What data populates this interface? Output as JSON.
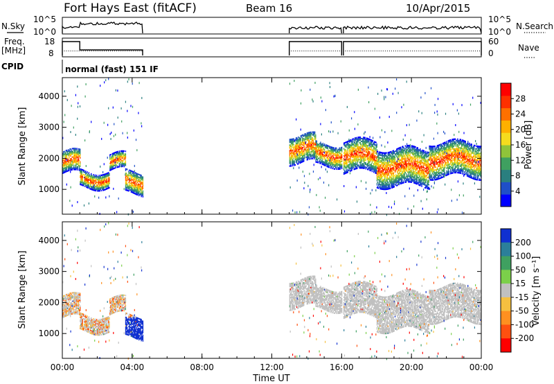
{
  "header": {
    "station": "Fort Hays East (fitACF)",
    "beam": "Beam 16",
    "date": "10/Apr/2015"
  },
  "strips": {
    "nsky_label": "N.Sky",
    "nsearch_label": "N.Search",
    "nsky_ticks": [
      "10^5",
      "10^0"
    ],
    "nsearch_ticks": [
      "10^5",
      "10^0"
    ],
    "freq_label_line1": "Freq.",
    "freq_label_line2": "[MHz]",
    "freq_ticks": [
      "18",
      "8"
    ],
    "nave_label": "Nave",
    "nave_ticks": [
      "60",
      "0"
    ],
    "cpid_label": "CPID",
    "cpid_text": "normal (fast) 151 IF"
  },
  "chart_data": [
    {
      "type": "heatmap",
      "name": "power-panel",
      "ylabel": "Slant Range [km]",
      "xlabel": "",
      "y_ticks": [
        "1000",
        "2000",
        "3000",
        "4000"
      ],
      "y_tick_values": [
        1000,
        2000,
        3000,
        4000
      ],
      "ylim": [
        200,
        4600
      ],
      "colorbar_label": "Power [dB]",
      "colorbar_ticks": [
        "4",
        "8",
        "12",
        "16",
        "20",
        "24",
        "28"
      ],
      "colorbar_values": [
        4,
        8,
        12,
        16,
        20,
        24,
        28
      ],
      "colorbar_range": [
        0,
        32
      ],
      "colors": [
        "#0000ff",
        "#1f4fc8",
        "#2a7f7f",
        "#3fa060",
        "#8fc43a",
        "#f5dc1e",
        "#ffb000",
        "#ff7000",
        "#ff3000",
        "#ff0000"
      ]
    },
    {
      "type": "heatmap",
      "name": "velocity-panel",
      "ylabel": "Slant Range [km]",
      "xlabel": "Time UT",
      "x_ticks": [
        "00:00",
        "04:00",
        "08:00",
        "12:00",
        "16:00",
        "20:00",
        "00:00"
      ],
      "x_tick_hours": [
        0,
        4,
        8,
        12,
        16,
        20,
        24
      ],
      "xlim_hours": [
        0,
        24
      ],
      "y_ticks": [
        "1000",
        "2000",
        "3000",
        "4000"
      ],
      "y_tick_values": [
        1000,
        2000,
        3000,
        4000
      ],
      "ylim": [
        200,
        4600
      ],
      "colorbar_label": "Velocity [m s⁻¹]",
      "colorbar_ticks": [
        "200",
        "100",
        "50",
        "15",
        "-15",
        "-50",
        "-100",
        "-200"
      ],
      "colors": [
        "#1030d0",
        "#2b7f9a",
        "#3fa060",
        "#7bd04a",
        "#c0c0c0",
        "#f5c040",
        "#ff9020",
        "#ff5010",
        "#ff0000"
      ]
    }
  ],
  "coverage": {
    "segments_hours": [
      [
        0,
        4.6
      ],
      [
        13.0,
        16.0
      ],
      [
        16.1,
        24
      ]
    ],
    "freq_high_mhz": 18,
    "freq_low_mhz": 10
  },
  "bands": {
    "power": [
      {
        "t0": 0.0,
        "t1": 1.0,
        "center": 1850,
        "width": 700
      },
      {
        "t0": 1.0,
        "t1": 2.7,
        "center": 1300,
        "width": 500
      },
      {
        "t0": 2.7,
        "t1": 3.6,
        "center": 1850,
        "width": 500
      },
      {
        "t0": 3.6,
        "t1": 4.6,
        "center": 1200,
        "width": 700
      },
      {
        "t0": 13.0,
        "t1": 14.5,
        "center": 2300,
        "width": 900
      },
      {
        "t0": 14.5,
        "t1": 16.0,
        "center": 2100,
        "width": 700
      },
      {
        "t0": 16.1,
        "t1": 18.0,
        "center": 2050,
        "width": 1000
      },
      {
        "t0": 18.0,
        "t1": 21.0,
        "center": 1700,
        "width": 1200
      },
      {
        "t0": 21.0,
        "t1": 24.0,
        "center": 1950,
        "width": 1100
      }
    ]
  }
}
